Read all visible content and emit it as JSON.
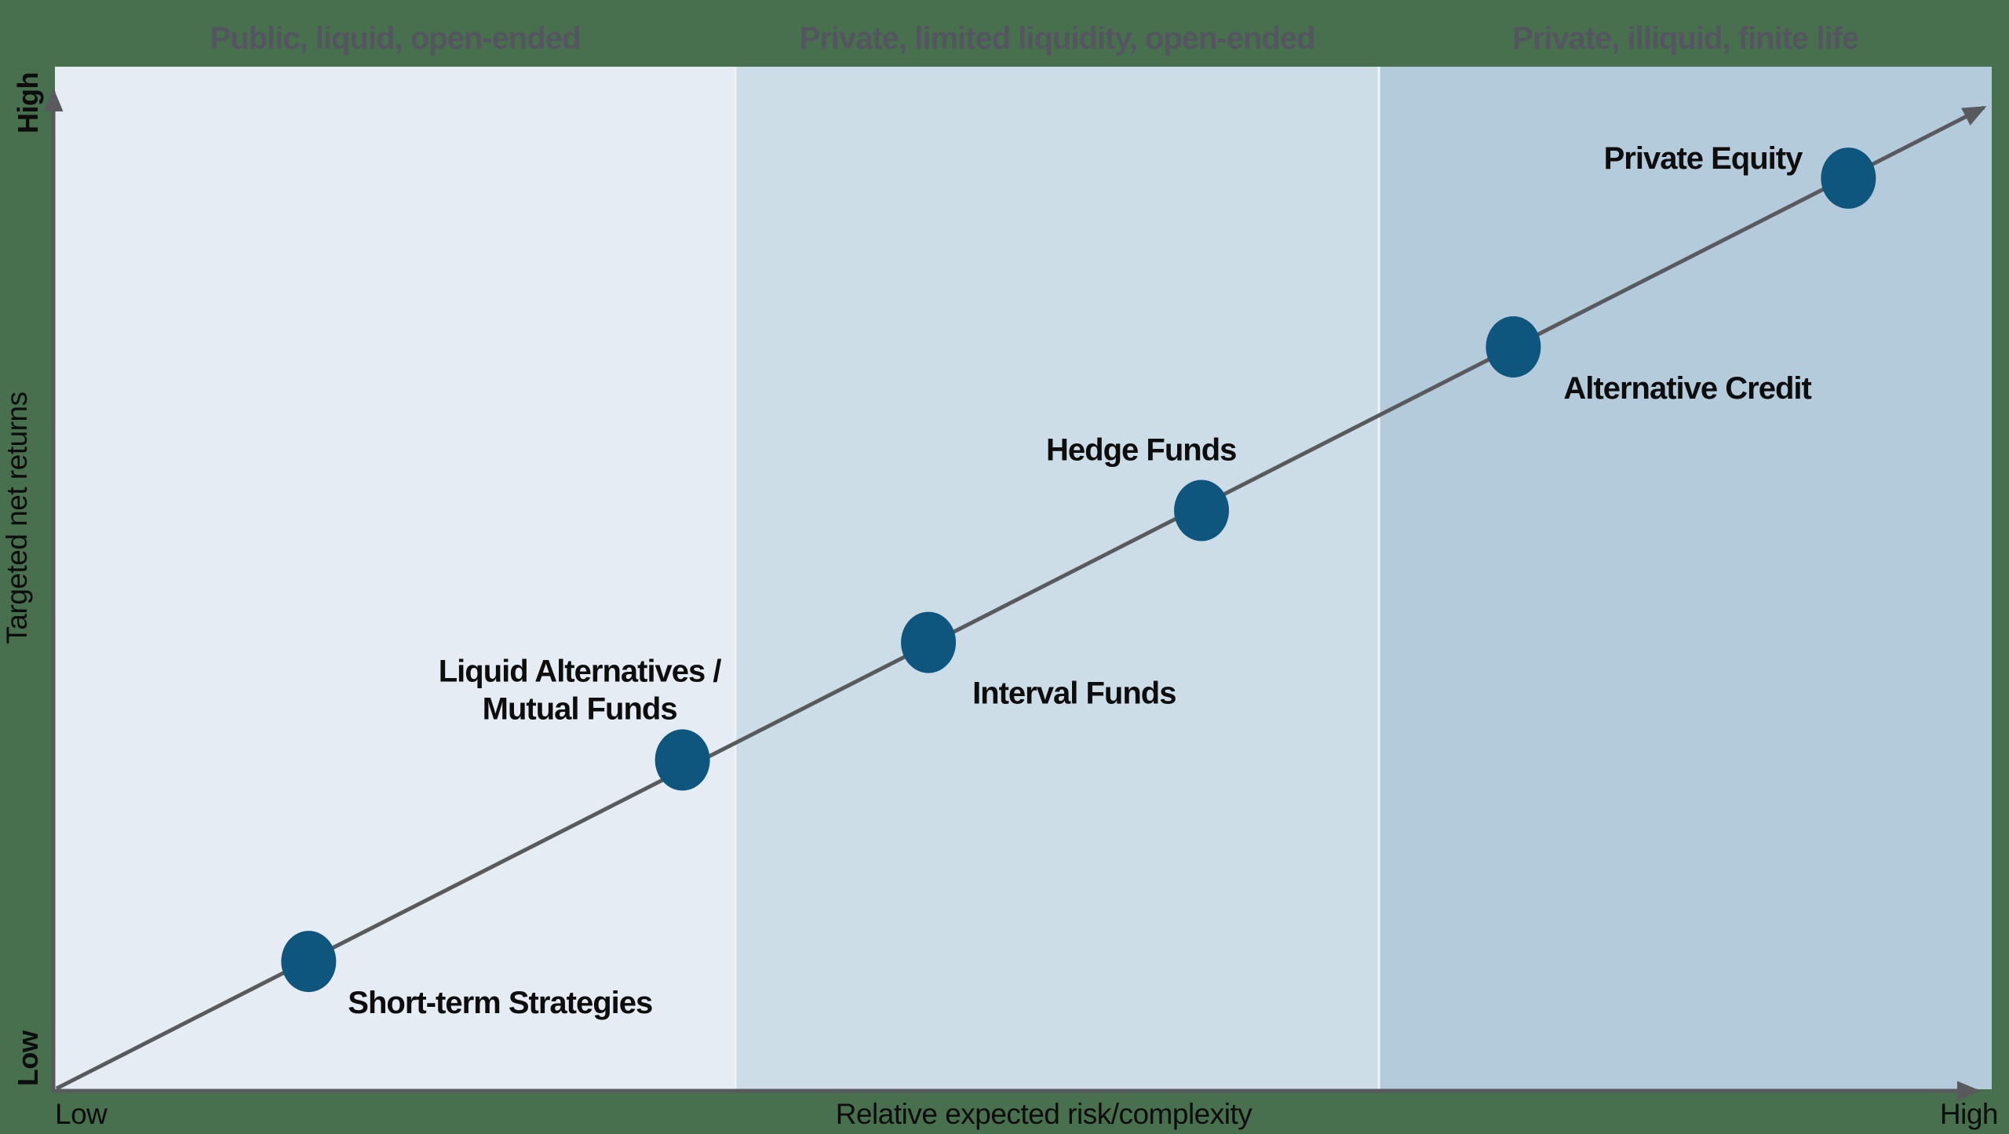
{
  "page": {
    "background_color": "#48704e"
  },
  "chart_data": {
    "type": "scatter",
    "title": "",
    "xlabel": "Relative expected risk/complexity",
    "ylabel": "Targeted net returns",
    "x_axis_low_label": "Low",
    "x_axis_high_label": "High",
    "y_axis_low_label": "Low",
    "y_axis_high_label": "High",
    "axis_color": "#595a5e",
    "trend_line_color": "#595a5e",
    "point_color": "#0e567e",
    "zone_header_color": "#54565f",
    "zone_divider_color": "#edf2f6",
    "x_range": [
      0,
      1
    ],
    "y_range": [
      0,
      1
    ],
    "grid": false,
    "legend_position": "none",
    "zones": [
      {
        "header": "Public, liquid, open-ended",
        "x_start": 0.0,
        "x_end": 0.3513,
        "fill": "#e6ecf3"
      },
      {
        "header": "Private, limited liquidity, open-ended",
        "x_start": 0.3513,
        "x_end": 0.6836,
        "fill": "#ccdde8"
      },
      {
        "header": "Private, illiquid, finite life",
        "x_start": 0.6836,
        "x_end": 1.0,
        "fill": "#b4cbdc"
      }
    ],
    "points": [
      {
        "label": "Short-term Strategies",
        "x": 0.131,
        "y": 0.125
      },
      {
        "label": "Liquid Alternatives / Mutual Funds",
        "label_line1": "Liquid Alternatives /",
        "label_line2": "Mutual Funds",
        "x": 0.324,
        "y": 0.322
      },
      {
        "label": "Interval Funds",
        "x": 0.451,
        "y": 0.437
      },
      {
        "label": "Hedge Funds",
        "x": 0.592,
        "y": 0.566
      },
      {
        "label": "Alternative Credit",
        "x": 0.753,
        "y": 0.726
      },
      {
        "label": "Private Equity",
        "x": 0.926,
        "y": 0.891
      }
    ]
  }
}
